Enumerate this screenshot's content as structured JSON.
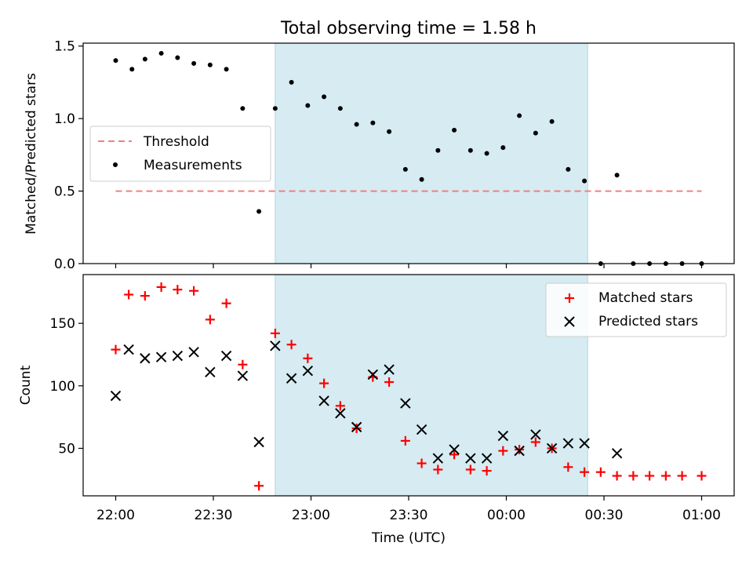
{
  "title": "Total observing time = 1.58 h",
  "chart_data": [
    {
      "type": "scatter",
      "ylabel": "Matched/Predicted stars",
      "x_ticks": [
        "22:00",
        "22:30",
        "23:00",
        "23:30",
        "00:00",
        "00:30",
        "01:00"
      ],
      "x_tick_minutes": [
        0,
        30,
        60,
        90,
        120,
        150,
        180
      ],
      "x_range_minutes": [
        -10,
        190
      ],
      "ylim": [
        0,
        1.52
      ],
      "y_ticks": [
        "0.0",
        "0.5",
        "1.0",
        "1.5"
      ],
      "y_tick_values": [
        0,
        0.5,
        1.0,
        1.5
      ],
      "shaded_span_minutes": [
        49,
        145
      ],
      "shaded_color": "#add8e6",
      "legend": {
        "placement": "center-left",
        "threshold_label": "Threshold",
        "measurements_label": "Measurements"
      },
      "threshold": {
        "value": 0.5,
        "x_start_minutes": 0,
        "x_end_minutes": 180,
        "color": "#f08080"
      },
      "measurements": {
        "x_minutes": [
          0,
          5,
          9,
          14,
          19,
          24,
          29,
          34,
          39,
          44,
          49,
          54,
          59,
          64,
          69,
          74,
          79,
          84,
          89,
          94,
          99,
          104,
          109,
          114,
          119,
          124,
          129,
          134,
          139,
          144,
          149,
          154,
          159,
          164,
          169,
          174,
          180
        ],
        "y": [
          1.4,
          1.34,
          1.41,
          1.45,
          1.42,
          1.38,
          1.37,
          1.34,
          1.07,
          0.36,
          1.07,
          1.25,
          1.09,
          1.15,
          1.07,
          0.96,
          0.97,
          0.91,
          0.65,
          0.58,
          0.78,
          0.92,
          0.78,
          0.76,
          0.8,
          1.02,
          0.9,
          0.98,
          0.65,
          0.57,
          0.0,
          0.61,
          0.0,
          0.0,
          0.0,
          0.0,
          0.0
        ]
      }
    },
    {
      "type": "scatter",
      "xlabel": "Time (UTC)",
      "ylabel": "Count",
      "x_ticks": [
        "22:00",
        "22:30",
        "23:00",
        "23:30",
        "00:00",
        "00:30",
        "01:00"
      ],
      "x_tick_minutes": [
        0,
        30,
        60,
        90,
        120,
        150,
        180
      ],
      "x_range_minutes": [
        -10,
        190
      ],
      "ylim": [
        12,
        189
      ],
      "y_ticks": [
        "50",
        "100",
        "150"
      ],
      "y_tick_values": [
        50,
        100,
        150
      ],
      "shaded_span_minutes": [
        49,
        145
      ],
      "legend": {
        "placement": "top-right"
      },
      "series": [
        {
          "name": "Matched stars",
          "marker": "plus",
          "color": "#ff0000",
          "x_minutes": [
            0,
            4,
            9,
            14,
            19,
            24,
            29,
            34,
            39,
            44,
            49,
            54,
            59,
            64,
            69,
            74,
            79,
            84,
            89,
            94,
            99,
            104,
            109,
            114,
            119,
            124,
            129,
            134,
            139,
            144,
            149,
            154,
            159,
            164,
            169,
            174,
            180
          ],
          "values": [
            129,
            173,
            172,
            179,
            177,
            176,
            153,
            166,
            117,
            20,
            142,
            133,
            122,
            102,
            84,
            66,
            107,
            103,
            56,
            38,
            33,
            45,
            33,
            32,
            48,
            49,
            55,
            50,
            35,
            31,
            31,
            28,
            28,
            28,
            28,
            28,
            28
          ]
        },
        {
          "name": "Predicted stars",
          "marker": "x",
          "color": "#000000",
          "x_minutes": [
            0,
            4,
            9,
            14,
            19,
            24,
            29,
            34,
            39,
            44,
            49,
            54,
            59,
            64,
            69,
            74,
            79,
            84,
            89,
            94,
            99,
            104,
            109,
            114,
            119,
            124,
            129,
            134,
            139,
            144,
            154
          ],
          "values": [
            92,
            129,
            122,
            123,
            124,
            127,
            111,
            124,
            108,
            55,
            132,
            106,
            112,
            88,
            78,
            67,
            109,
            113,
            86,
            65,
            42,
            49,
            42,
            42,
            60,
            48,
            61,
            50,
            54,
            54,
            46
          ]
        }
      ]
    }
  ]
}
